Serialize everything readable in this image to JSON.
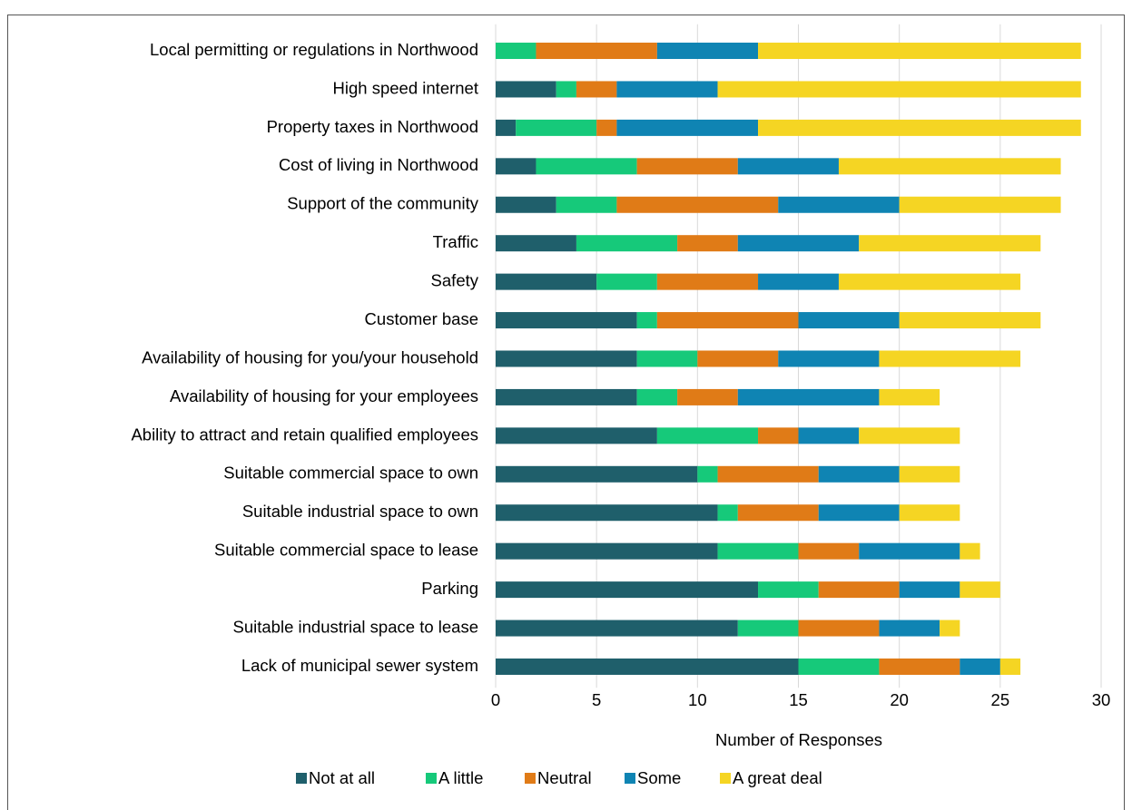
{
  "chart_data": {
    "type": "stacked_bar_horizontal",
    "x_label": "Number of Responses",
    "categories": [
      "Local permitting or regulations in Northwood",
      "High speed internet",
      "Property taxes in Northwood",
      "Cost of living in Northwood",
      "Support of the community",
      "Traffic",
      "Safety",
      "Customer base",
      "Availability of housing for you/your household",
      "Availability of housing for your employees",
      "Ability to attract and retain qualified employees",
      "Suitable commercial space to own",
      "Suitable industrial space to own",
      "Suitable commercial space to lease",
      "Parking",
      "Suitable industrial space to lease",
      "Lack of municipal sewer system"
    ],
    "series": [
      {
        "name": "Not at all",
        "color": "#1f5f6b",
        "values": [
          0,
          3,
          1,
          2,
          3,
          4,
          5,
          7,
          7,
          7,
          8,
          10,
          11,
          11,
          13,
          12,
          15
        ]
      },
      {
        "name": "A little",
        "color": "#16c97a",
        "values": [
          2,
          1,
          4,
          5,
          3,
          5,
          3,
          1,
          3,
          2,
          5,
          1,
          1,
          4,
          3,
          3,
          4
        ]
      },
      {
        "name": "Neutral",
        "color": "#e07b17",
        "values": [
          6,
          2,
          1,
          5,
          8,
          3,
          5,
          7,
          4,
          3,
          2,
          5,
          4,
          3,
          4,
          4,
          4
        ]
      },
      {
        "name": "Some",
        "color": "#0f84b3",
        "values": [
          5,
          5,
          7,
          5,
          6,
          6,
          4,
          5,
          5,
          7,
          3,
          4,
          4,
          5,
          3,
          3,
          2
        ]
      },
      {
        "name": "A great deal",
        "color": "#f5d523",
        "values": [
          16,
          18,
          16,
          11,
          8,
          9,
          9,
          7,
          7,
          3,
          5,
          3,
          3,
          1,
          2,
          1,
          1
        ]
      }
    ],
    "xlim": [
      0,
      30
    ],
    "xticks": [
      0,
      5,
      10,
      15,
      20,
      25,
      30
    ],
    "grid": true,
    "legend": "bottom"
  }
}
